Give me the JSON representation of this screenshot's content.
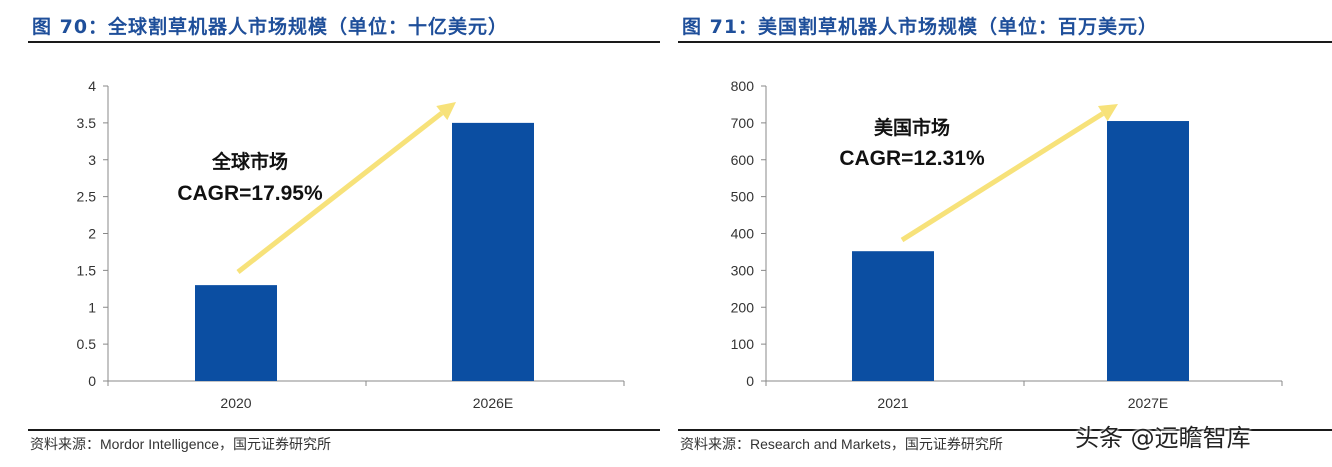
{
  "left": {
    "title": "图 70：全球割草机器人市场规模（单位：十亿美元）",
    "source": "资料来源：Mordor Intelligence，国元证券研究所"
  },
  "right": {
    "title": "图 71：美国割草机器人市场规模（单位：百万美元）",
    "source": "资料来源：Research and Markets，国元证券研究所"
  },
  "watermark": "头条 @远瞻智库",
  "colors": {
    "bar": "#0b4ea2",
    "arrow": "#f7e27a",
    "title": "#1f4f9a"
  },
  "chart_data": [
    {
      "type": "bar",
      "categories": [
        "2020",
        "2026E"
      ],
      "values": [
        1.3,
        3.5
      ],
      "ylim": [
        0,
        4
      ],
      "yticks": [
        "0",
        "0.5",
        "1",
        "1.5",
        "2",
        "2.5",
        "3",
        "3.5",
        "4"
      ],
      "ytick_values": [
        0,
        0.5,
        1,
        1.5,
        2,
        2.5,
        3,
        3.5,
        4
      ],
      "annotation_line1": "全球市场",
      "annotation_line2": "CAGR=17.95%",
      "grid": false
    },
    {
      "type": "bar",
      "categories": [
        "2021",
        "2027E"
      ],
      "values": [
        352,
        705
      ],
      "ylim": [
        0,
        800
      ],
      "yticks": [
        "0",
        "100",
        "200",
        "300",
        "400",
        "500",
        "600",
        "700",
        "800"
      ],
      "ytick_values": [
        0,
        100,
        200,
        300,
        400,
        500,
        600,
        700,
        800
      ],
      "annotation_line1": "美国市场",
      "annotation_line2": "CAGR=12.31%",
      "grid": false
    }
  ]
}
